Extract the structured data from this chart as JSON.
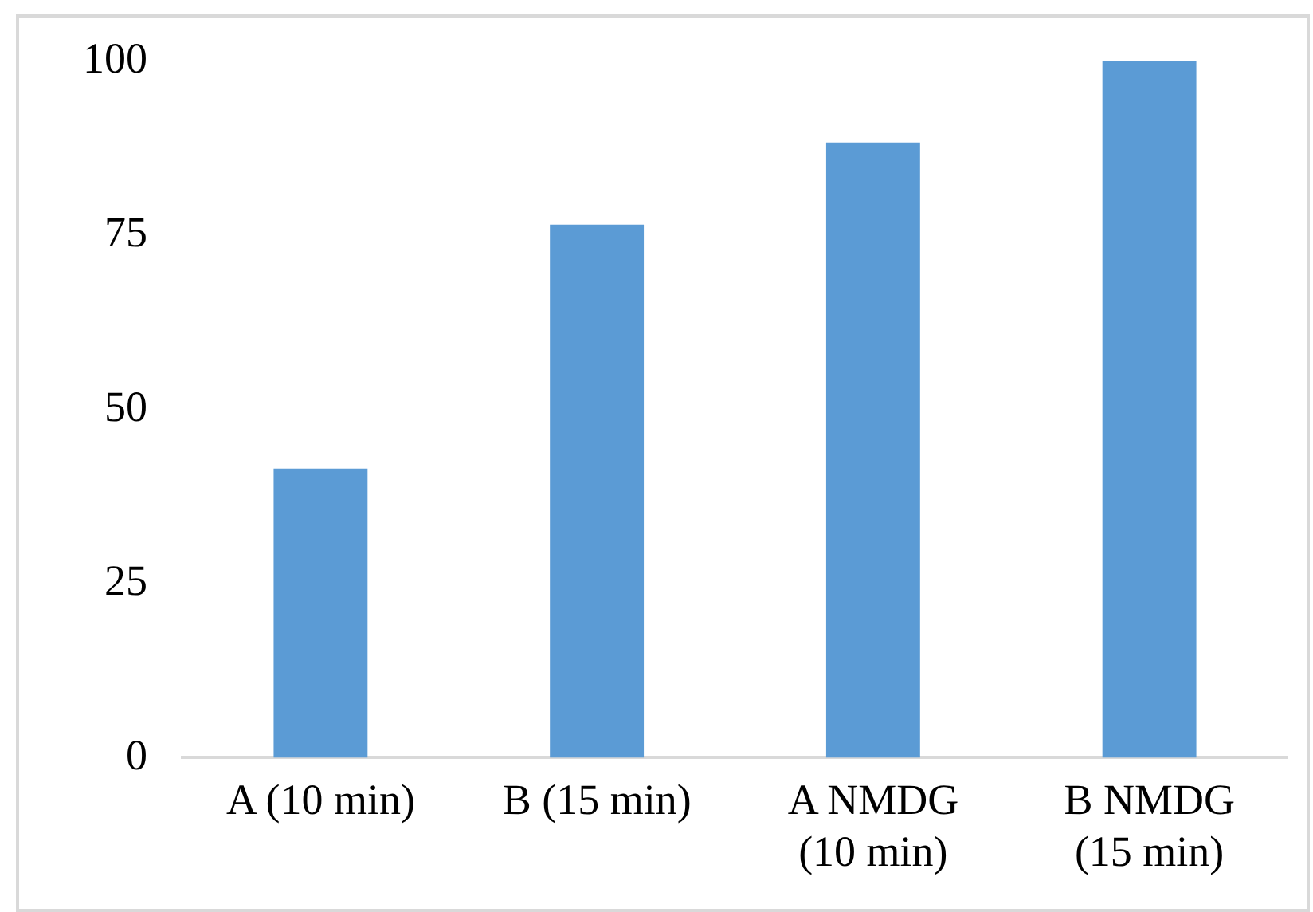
{
  "chart_data": {
    "type": "bar",
    "categories": [
      "A (10 min)",
      "B (15 min)",
      "A NMDG (10 min)",
      "B NMDG (15 min)"
    ],
    "values": [
      41.5,
      76.5,
      88.3,
      100
    ],
    "color": "#5b9bd5",
    "ylim": [
      0,
      100
    ],
    "yticks": [
      0,
      25,
      50,
      75,
      100
    ],
    "grid": false
  }
}
